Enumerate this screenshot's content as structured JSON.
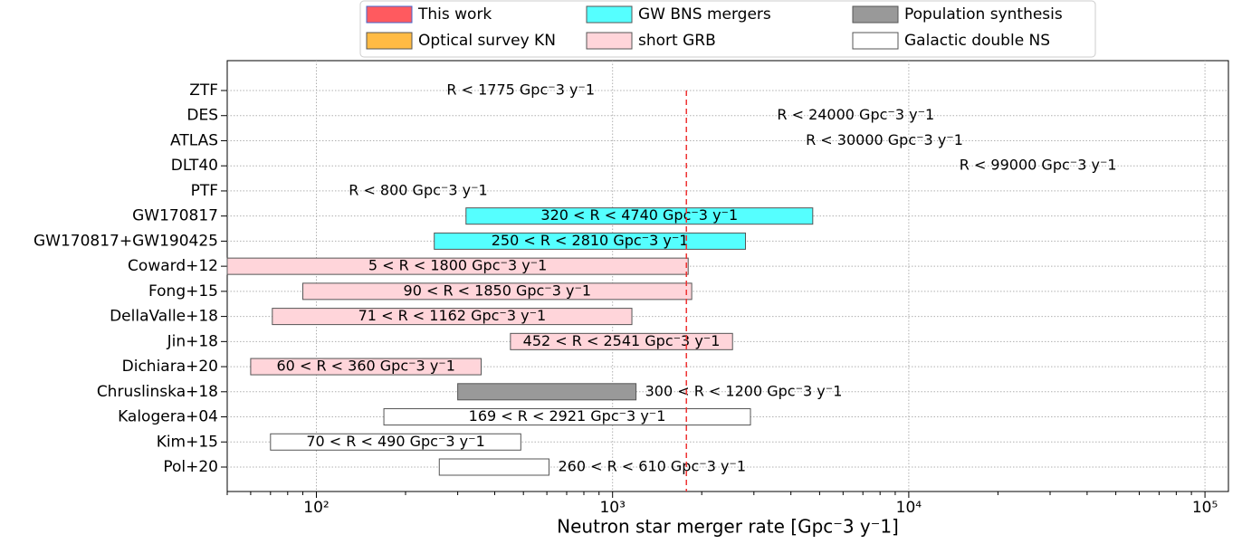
{
  "chart_data": {
    "type": "range_bar",
    "x_label": "Neutron star merger rate [Gpc⁻3 y⁻1]",
    "xscale": "log",
    "xlim": [
      50,
      120000
    ],
    "xticks": [
      {
        "value": 100,
        "label": "10²"
      },
      {
        "value": 1000,
        "label": "10³"
      },
      {
        "value": 10000,
        "label": "10⁴"
      },
      {
        "value": 100000,
        "label": "10⁵"
      }
    ],
    "grid": true,
    "legend": [
      {
        "name": "This work",
        "color": "#ff5a5f"
      },
      {
        "name": "Optical survey KN",
        "color": "#ffbb44"
      },
      {
        "name": "GW BNS mergers",
        "color": "#55ffff"
      },
      {
        "name": "short GRB",
        "color": "#ffd5da"
      },
      {
        "name": "Population synthesis",
        "color": "#999999"
      },
      {
        "name": "Galactic double NS",
        "color": "#ffffff"
      }
    ],
    "categories": [
      "ZTF",
      "DES",
      "ATLAS",
      "DLT40",
      "PTF",
      "GW170817",
      "GW170817+GW190425",
      "Coward+12",
      "Fong+15",
      "DellaValle+18",
      "Jin+18",
      "Dichiara+20",
      "Chruslinska+18",
      "Kalogera+04",
      "Kim+15",
      "Pol+20"
    ],
    "group": [
      1,
      1,
      1,
      1,
      1,
      2,
      2,
      3,
      3,
      3,
      3,
      3,
      4,
      5,
      5,
      5
    ],
    "low": [
      null,
      null,
      null,
      null,
      null,
      320,
      250,
      5,
      90,
      71,
      452,
      60,
      300,
      169,
      70,
      260
    ],
    "high": [
      1775,
      24000,
      30000,
      99000,
      800,
      4740,
      2810,
      1800,
      1850,
      1162,
      2541,
      360,
      1200,
      2921,
      490,
      610
    ],
    "value_labels": [
      "R < 1775 Gpc⁻3 y⁻1",
      "R < 24000 Gpc⁻3 y⁻1",
      "R < 30000 Gpc⁻3 y⁻1",
      "R < 99000 Gpc⁻3 y⁻1",
      "R < 800 Gpc⁻3 y⁻1",
      "320 < R < 4740 Gpc⁻3 y⁻1",
      "250 < R < 2810 Gpc⁻3 y⁻1",
      "5 < R < 1800 Gpc⁻3 y⁻1",
      "90 < R < 1850 Gpc⁻3 y⁻1",
      "71 < R < 1162 Gpc⁻3 y⁻1",
      "452 < R < 2541 Gpc⁻3 y⁻1",
      "60 < R < 360 Gpc⁻3 y⁻1",
      "300 < R < 1200 Gpc⁻3 y⁻1",
      "169 < R < 2921 Gpc⁻3 y⁻1",
      "70 < R < 490 Gpc⁻3 y⁻1",
      "260 < R < 610 Gpc⁻3 y⁻1"
    ]
  }
}
